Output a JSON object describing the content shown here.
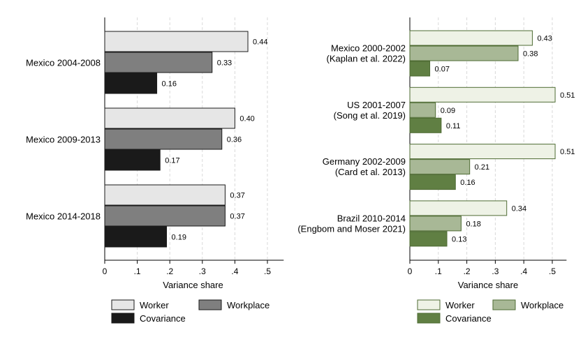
{
  "chart_data": [
    {
      "type": "bar",
      "orientation": "horizontal",
      "categories": [
        "Mexico 2004-2008",
        "Mexico 2009-2013",
        "Mexico 2014-2018"
      ],
      "series": [
        {
          "name": "Worker",
          "values": [
            0.44,
            0.4,
            0.37
          ],
          "labels": [
            "0.44",
            "0.40",
            "0.37"
          ],
          "color": "#e6e6e6"
        },
        {
          "name": "Workplace",
          "values": [
            0.33,
            0.36,
            0.37
          ],
          "labels": [
            "0.33",
            "0.36",
            "0.37"
          ],
          "color": "#7f7f7f"
        },
        {
          "name": "Covariance",
          "values": [
            0.16,
            0.17,
            0.19
          ],
          "labels": [
            "0.16",
            "0.17",
            "0.19"
          ],
          "color": "#1a1a1a"
        }
      ],
      "xlabel": "Variance share",
      "xlim": [
        0,
        0.55
      ],
      "xticks": [
        0,
        0.1,
        0.2,
        0.3,
        0.4,
        0.5
      ],
      "xtick_labels": [
        "0",
        ".1",
        ".2",
        ".3",
        ".4",
        ".5"
      ],
      "grid": true,
      "legend_position": "bottom"
    },
    {
      "type": "bar",
      "orientation": "horizontal",
      "categories": [
        [
          "Mexico 2000-2002",
          "(Kaplan et al. 2022)"
        ],
        [
          "US 2001-2007",
          "(Song et al. 2019)"
        ],
        [
          "Germany 2002-2009",
          "(Card et al. 2013)"
        ],
        [
          "Brazil 2010-2014",
          "(Engbom and Moser 2021)"
        ]
      ],
      "series": [
        {
          "name": "Worker",
          "values": [
            0.43,
            0.51,
            0.51,
            0.34
          ],
          "labels": [
            "0.43",
            "0.51",
            "0.51",
            "0.34"
          ],
          "color": "#eef2e6"
        },
        {
          "name": "Workplace",
          "values": [
            0.38,
            0.09,
            0.21,
            0.18
          ],
          "labels": [
            "0.38",
            "0.09",
            "0.21",
            "0.18"
          ],
          "color": "#a8b896"
        },
        {
          "name": "Covariance",
          "values": [
            0.07,
            0.11,
            0.16,
            0.13
          ],
          "labels": [
            "0.07",
            "0.11",
            "0.16",
            "0.13"
          ],
          "color": "#607f43"
        }
      ],
      "xlabel": "Variance share",
      "xlim": [
        0,
        0.55
      ],
      "xticks": [
        0,
        0.1,
        0.2,
        0.3,
        0.4,
        0.5
      ],
      "xtick_labels": [
        "0",
        ".1",
        ".2",
        ".3",
        ".4",
        ".5"
      ],
      "grid": true,
      "legend_position": "bottom"
    }
  ],
  "colors": {
    "left_outline": "#1a1a1a",
    "right_outline": "#4e6b33",
    "grid": "#d9d9d9"
  }
}
